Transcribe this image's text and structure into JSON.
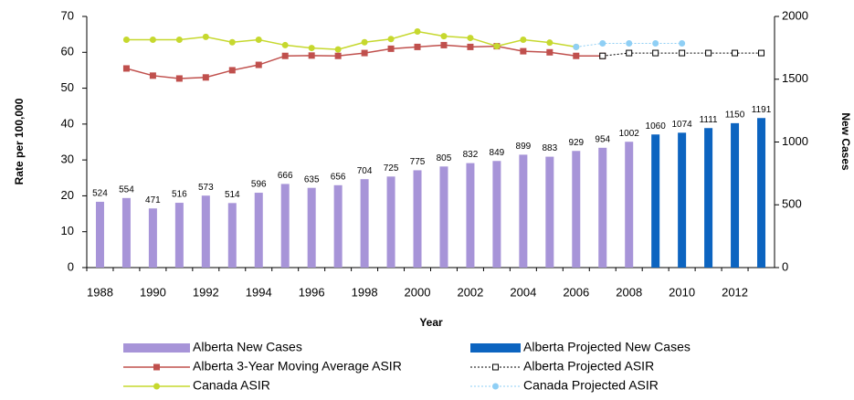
{
  "chart_data": {
    "type": "combo",
    "x_label": "Year",
    "y_label": "Rate per 100,000",
    "y2_label": "New Cases",
    "categories": [
      "1988",
      null,
      "1990",
      null,
      "1992",
      null,
      "1994",
      null,
      "1996",
      null,
      "1998",
      null,
      "2000",
      null,
      "2002",
      null,
      "2004",
      null,
      "2006",
      null,
      "2008",
      null,
      "2010",
      null,
      "2012",
      null
    ],
    "ylim": [
      0,
      70
    ],
    "yticks": [
      0,
      10,
      20,
      30,
      40,
      50,
      60,
      70
    ],
    "y2lim": [
      0,
      2000
    ],
    "y2ticks": [
      0,
      500,
      1000,
      1500,
      2000
    ],
    "series": [
      {
        "name": "Alberta New Cases",
        "type": "bar",
        "axis": "y2",
        "color": "#a794d8",
        "data_labels": true,
        "values": [
          524,
          554,
          471,
          516,
          573,
          514,
          596,
          666,
          635,
          656,
          704,
          725,
          775,
          805,
          832,
          849,
          899,
          883,
          929,
          954,
          1002,
          null,
          null,
          null,
          null,
          null
        ]
      },
      {
        "name": "Alberta Projected New Cases",
        "type": "bar",
        "axis": "y2",
        "color": "#0c64c0",
        "data_labels": true,
        "values": [
          null,
          null,
          null,
          null,
          null,
          null,
          null,
          null,
          null,
          null,
          null,
          null,
          null,
          null,
          null,
          null,
          null,
          null,
          null,
          null,
          null,
          1060,
          1074,
          1111,
          1150,
          1191
        ]
      },
      {
        "name": "Alberta 3-Year Moving Average ASIR",
        "type": "line",
        "color": "#c0504d",
        "marker": "square",
        "dashed": false,
        "values": [
          null,
          55.5,
          53.5,
          52.7,
          53,
          55,
          56.5,
          59,
          59.1,
          59,
          59.8,
          61,
          61.5,
          62,
          61.5,
          61.7,
          60.3,
          60,
          59,
          59,
          null,
          null,
          null,
          null,
          null,
          null
        ]
      },
      {
        "name": "Alberta Projected ASIR",
        "type": "line",
        "color": "#000000",
        "marker": "hollow-square",
        "dashed": true,
        "values": [
          null,
          null,
          null,
          null,
          null,
          null,
          null,
          null,
          null,
          null,
          null,
          null,
          null,
          null,
          null,
          null,
          null,
          null,
          null,
          59,
          59.8,
          59.8,
          59.8,
          59.8,
          59.8,
          59.8
        ]
      },
      {
        "name": "Canada ASIR",
        "type": "line",
        "color": "#c6d82e",
        "marker": "circle",
        "dashed": false,
        "values": [
          null,
          63.5,
          63.5,
          63.5,
          64.3,
          62.8,
          63.5,
          62,
          61.2,
          60.8,
          62.8,
          63.7,
          65.8,
          64.5,
          64,
          61.7,
          63.5,
          62.7,
          61.5,
          null,
          null,
          null,
          null,
          null,
          null,
          null
        ]
      },
      {
        "name": "Canada Projected ASIR",
        "type": "line",
        "color": "#8fcff5",
        "marker": "circle",
        "dashed": true,
        "values": [
          null,
          null,
          null,
          null,
          null,
          null,
          null,
          null,
          null,
          null,
          null,
          null,
          null,
          null,
          null,
          null,
          null,
          null,
          61.5,
          62.5,
          62.5,
          62.5,
          62.5,
          null,
          null,
          null
        ]
      }
    ]
  }
}
